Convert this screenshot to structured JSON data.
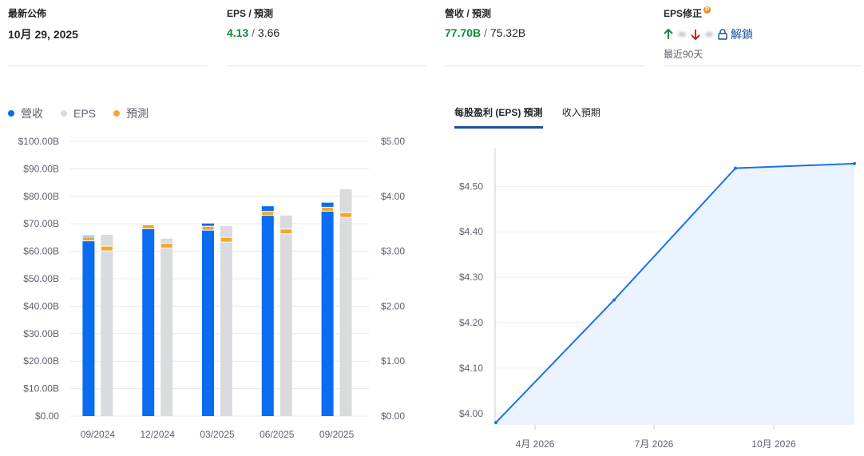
{
  "stats": {
    "latest": {
      "label": "最新公佈",
      "value": "10月 29, 2025"
    },
    "eps": {
      "label": "EPS / 預測",
      "actual": "4.13",
      "forecast": "3.66"
    },
    "revenue": {
      "label": "營收 / 預測",
      "actual": "77.70B",
      "forecast": "75.32B"
    },
    "revision": {
      "label": "EPS修正",
      "pro_badge": "P",
      "unlock_label": "解鎖",
      "period": "最近90天"
    }
  },
  "legend": {
    "revenue": "營收",
    "eps": "EPS",
    "forecast": "預測"
  },
  "tabs": [
    {
      "label": "每股盈利 (EPS) 預測",
      "active": true
    },
    {
      "label": "收入預期",
      "active": false
    }
  ],
  "colors": {
    "revenue": "#0a6cf0",
    "eps": "#d9dbde",
    "forecast": "#f4a72e",
    "line": "#1a73e8",
    "area": "#eaf3fe",
    "positive": "#0e8a3a",
    "negative": "#d91e18"
  },
  "chart_data": [
    {
      "type": "bar",
      "categories": [
        "09/2024",
        "12/2024",
        "03/2025",
        "06/2025",
        "09/2025"
      ],
      "series": [
        {
          "name": "營收",
          "axis": "left",
          "values": [
            65.6,
            69.6,
            70.1,
            76.4,
            77.7
          ],
          "forecast": [
            64.5,
            68.9,
            68.4,
            73.8,
            75.3
          ]
        },
        {
          "name": "EPS",
          "axis": "right",
          "values": [
            3.3,
            3.23,
            3.46,
            3.65,
            4.13
          ],
          "forecast": [
            3.05,
            3.1,
            3.21,
            3.36,
            3.66
          ]
        }
      ],
      "left_axis": {
        "ticks": [
          "$0.00",
          "$10.00B",
          "$20.00B",
          "$30.00B",
          "$40.00B",
          "$50.00B",
          "$60.00B",
          "$70.00B",
          "$80.00B",
          "$90.00B",
          "$100.00B"
        ],
        "range": [
          0,
          100
        ]
      },
      "right_axis": {
        "ticks": [
          "$0.00",
          "$1.00",
          "$2.00",
          "$3.00",
          "$4.00",
          "$5.00"
        ],
        "range": [
          0,
          5
        ]
      },
      "grid": true
    },
    {
      "type": "area",
      "x": [
        "2026-02",
        "2026-05",
        "2026-08",
        "2026-11"
      ],
      "values": [
        3.98,
        4.25,
        4.54,
        4.55
      ],
      "y_ticks": [
        "$4.00",
        "$4.10",
        "$4.20",
        "$4.30",
        "$4.40",
        "$4.50"
      ],
      "y_range": [
        3.975,
        4.585
      ],
      "x_ticks": [
        "4月 2026",
        "7月 2026",
        "10月 2026"
      ],
      "grid": true
    }
  ]
}
